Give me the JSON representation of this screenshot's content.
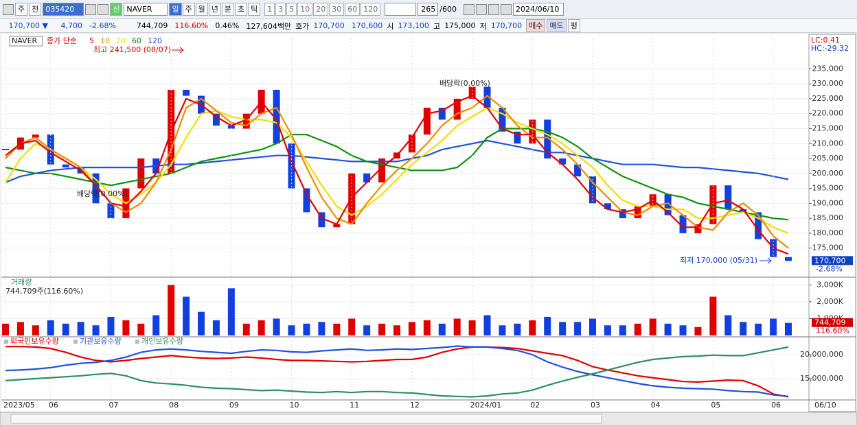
{
  "toolbar": {
    "market": "주",
    "mode": "전",
    "code": "035420",
    "name": "NAVER",
    "new": "신",
    "periods": [
      "일",
      "주",
      "월",
      "년",
      "분",
      "초",
      "틱"
    ],
    "intervals": [
      "1",
      "3",
      "5",
      "10",
      "20",
      "30",
      "60",
      "120"
    ],
    "count": "265",
    "max": "/600",
    "date": "2024/06/10"
  },
  "quote": {
    "price": "170,700 ▼",
    "change": "4,700",
    "change_pct": "-2.68%",
    "volume": "744,709",
    "volume_ratio": "116.60%",
    "turnover": "0.46%",
    "amount": "127,604백만",
    "ask_label": "호가",
    "ask": "170,700",
    "bid": "170,600",
    "open_label": "시",
    "open": "173,100",
    "high_label": "고",
    "high": "175,000",
    "low_label": "저",
    "low": "170,700",
    "buy": "매수",
    "sell": "매도",
    "avg": "평"
  },
  "chart_data": [
    {
      "type": "candlestick",
      "title": "NAVER",
      "legend_label": "종가 단순",
      "up_color": "#e00000",
      "down_color": "#1040e0",
      "categories": [
        "2023/05",
        null,
        null,
        "06",
        null,
        null,
        null,
        "07",
        null,
        null,
        null,
        "08",
        null,
        null,
        null,
        "09",
        null,
        null,
        null,
        "10",
        null,
        null,
        null,
        "11",
        null,
        null,
        null,
        "12",
        null,
        null,
        null,
        "2024/01",
        null,
        null,
        null,
        "02",
        null,
        null,
        null,
        "03",
        null,
        null,
        null,
        "04",
        null,
        null,
        null,
        "05",
        null,
        null,
        null,
        "06",
        null
      ],
      "x_end_label": "06/10",
      "close": [
        208000,
        212000,
        213000,
        203000,
        202000,
        200000,
        190000,
        185000,
        195000,
        205000,
        200000,
        228000,
        226000,
        220000,
        216000,
        215000,
        220000,
        228000,
        210000,
        195000,
        187000,
        182000,
        183000,
        200000,
        197000,
        205000,
        207000,
        213000,
        222000,
        218000,
        225000,
        229000,
        222000,
        214000,
        210000,
        218000,
        205000,
        203000,
        199000,
        190000,
        188000,
        185000,
        189000,
        193000,
        186000,
        180000,
        183000,
        196000,
        188000,
        187000,
        178000,
        172000,
        170700
      ],
      "series": [
        {
          "name": "5",
          "color": "#e00000",
          "values": [
            206000,
            210000,
            211000,
            207000,
            204000,
            201000,
            196000,
            190000,
            189000,
            194000,
            200000,
            214000,
            225000,
            223000,
            219000,
            216000,
            218000,
            224000,
            218000,
            204000,
            193000,
            185000,
            183000,
            192000,
            197000,
            202000,
            206000,
            212000,
            220000,
            221000,
            224000,
            226000,
            222000,
            215000,
            213000,
            213000,
            207000,
            203000,
            198000,
            192000,
            188000,
            187000,
            188000,
            191000,
            187000,
            182000,
            182000,
            190000,
            191000,
            188000,
            181000,
            175000,
            173000
          ]
        },
        {
          "name": "10",
          "color": "#f08a00",
          "values": [
            205000,
            210000,
            212000,
            208000,
            205000,
            202000,
            196000,
            190000,
            187000,
            190000,
            197000,
            208000,
            222000,
            225000,
            221000,
            217000,
            216000,
            220000,
            222000,
            213000,
            202000,
            192000,
            185000,
            183000,
            190000,
            196000,
            201000,
            205000,
            210000,
            216000,
            220000,
            222000,
            226000,
            222000,
            216000,
            212000,
            212000,
            208000,
            203000,
            197000,
            192000,
            187000,
            186000,
            189000,
            190000,
            186000,
            182000,
            181000,
            187000,
            190000,
            186000,
            179000,
            175000
          ]
        },
        {
          "name": "20",
          "color": "#f0e000",
          "values": [
            197000,
            205000,
            210000,
            208000,
            205000,
            202000,
            198000,
            193000,
            190000,
            193000,
            197000,
            203000,
            212000,
            220000,
            221000,
            219000,
            218000,
            218000,
            217000,
            212000,
            204000,
            196000,
            189000,
            186000,
            189000,
            193000,
            198000,
            203000,
            207000,
            211000,
            216000,
            219000,
            222000,
            220000,
            217000,
            215000,
            213000,
            210000,
            206000,
            202000,
            196000,
            191000,
            189000,
            189000,
            188000,
            188000,
            185000,
            185000,
            186000,
            187000,
            185000,
            182000,
            180000
          ]
        },
        {
          "name": "60",
          "color": "#109010",
          "values": [
            202000,
            201000,
            200000,
            200000,
            199000,
            198000,
            197000,
            196000,
            197000,
            198000,
            199000,
            200000,
            202000,
            204000,
            205000,
            206000,
            207000,
            208000,
            210000,
            213000,
            213000,
            211000,
            209000,
            206000,
            204000,
            203000,
            202000,
            201000,
            201000,
            201000,
            202000,
            206000,
            212000,
            215000,
            215000,
            215000,
            214000,
            212000,
            209000,
            205000,
            202000,
            199000,
            197000,
            195000,
            193000,
            192000,
            190000,
            189000,
            188000,
            187000,
            186000,
            185000,
            184500
          ]
        },
        {
          "name": "120",
          "color": "#2050e0",
          "values": [
            197000,
            199000,
            200000,
            201000,
            201500,
            202000,
            202000,
            202000,
            202000,
            202000,
            202500,
            203000,
            203000,
            203500,
            204000,
            204500,
            205000,
            205500,
            206000,
            206000,
            205500,
            205000,
            204500,
            204000,
            204000,
            204000,
            204000,
            205000,
            206000,
            208000,
            209000,
            210000,
            211000,
            210000,
            209000,
            208000,
            207000,
            207000,
            206000,
            205000,
            204000,
            203000,
            203000,
            203000,
            202500,
            202000,
            202000,
            201500,
            201000,
            200500,
            200000,
            199000,
            198000
          ]
        }
      ],
      "ylim": [
        165500,
        245200
      ],
      "yticks": [
        {
          "value": 175000,
          "label": "175,000"
        },
        {
          "value": 180000,
          "label": "180,000"
        },
        {
          "value": 185000,
          "label": "185,000"
        },
        {
          "value": 190000,
          "label": "190,000"
        },
        {
          "value": 195000,
          "label": "195,000"
        },
        {
          "value": 200000,
          "label": "200,000"
        },
        {
          "value": 205000,
          "label": "205,000"
        },
        {
          "value": 210000,
          "label": "210,000"
        },
        {
          "value": 215000,
          "label": "215,000"
        },
        {
          "value": 220000,
          "label": "220,000"
        },
        {
          "value": 225000,
          "label": "225,000"
        },
        {
          "value": 230000,
          "label": "230,000"
        },
        {
          "value": 235000,
          "label": "235,000"
        }
      ],
      "annotations": {
        "high": "최고 241,500 (08/07)",
        "dividend_1": "배당락(0.00%)",
        "dividend_2": "배당락(0.00%)",
        "low": "최저 170,000 (05/31)",
        "lc": "LC:0.41",
        "hc": "HC:-29.32",
        "last_price": "170,700",
        "last_change": "-2.68%"
      }
    },
    {
      "type": "bar",
      "title": "거래량",
      "subtitle": "744,709주(116.60%)",
      "values": [
        700,
        800,
        600,
        900,
        700,
        800,
        600,
        1100,
        900,
        700,
        1200,
        3000,
        2300,
        1400,
        900,
        2800,
        700,
        900,
        1000,
        600,
        700,
        800,
        700,
        1000,
        600,
        700,
        600,
        800,
        900,
        700,
        1000,
        900,
        1200,
        600,
        700,
        900,
        1100,
        800,
        800,
        1000,
        600,
        600,
        700,
        1000,
        700,
        600,
        500,
        2300,
        1200,
        800,
        700,
        1000,
        744.709
      ],
      "ylim": [
        0,
        3300
      ],
      "yticks": [
        {
          "value": 1000,
          "label": "1,000K"
        },
        {
          "value": 2000,
          "label": "2,000K"
        },
        {
          "value": 3000,
          "label": "3,000K"
        }
      ],
      "last_label": "744,709",
      "last_ratio": "116.60%"
    },
    {
      "type": "line",
      "series": [
        {
          "name": "외국인보유수량",
          "color": "#e00000",
          "values": [
            21700000,
            21700000,
            21600000,
            21300000,
            20500000,
            19500000,
            18800000,
            18500000,
            18800000,
            19200000,
            19500000,
            19800000,
            19500000,
            19300000,
            19200000,
            19300000,
            19500000,
            19300000,
            19000000,
            18800000,
            18800000,
            18700000,
            18600000,
            18500000,
            18600000,
            18800000,
            19000000,
            19000000,
            19500000,
            20500000,
            21200000,
            21600000,
            21600000,
            21500000,
            21300000,
            20800000,
            20300000,
            19800000,
            18800000,
            17500000,
            16800000,
            16200000,
            15600000,
            15200000,
            14800000,
            14400000,
            14300000,
            14500000,
            14700000,
            14600000,
            13500000,
            11800000,
            11200000
          ]
        },
        {
          "name": "기관보유수량",
          "color": "#2050e0",
          "values": [
            16700000,
            16800000,
            17000000,
            17300000,
            17800000,
            18200000,
            18400000,
            18800000,
            19500000,
            20500000,
            21000000,
            21200000,
            21000000,
            20700000,
            20500000,
            20300000,
            20700000,
            21000000,
            20900000,
            20600000,
            20500000,
            20800000,
            21000000,
            21200000,
            20900000,
            21000000,
            21200000,
            21100000,
            21300000,
            21500000,
            21800000,
            21600000,
            21600000,
            21300000,
            20900000,
            20000000,
            18500000,
            17400000,
            16500000,
            15800000,
            15200000,
            14600000,
            14000000,
            13500000,
            13200000,
            13000000,
            12900000,
            12800000,
            12500000,
            12300000,
            12200000,
            11600000,
            11300000
          ]
        },
        {
          "name": "개인보유수량",
          "color": "#2a9060",
          "values": [
            14600000,
            14800000,
            15000000,
            15200000,
            15400000,
            15600000,
            15900000,
            16100000,
            15600000,
            14600000,
            14100000,
            13900000,
            13600000,
            13200000,
            13000000,
            12900000,
            12700000,
            12500000,
            12600000,
            12400000,
            12200000,
            12100000,
            12300000,
            12100000,
            12300000,
            12300000,
            12100000,
            12000000,
            11700000,
            11400000,
            11300000,
            11200000,
            11400000,
            11800000,
            12000000,
            12600000,
            13600000,
            14500000,
            15300000,
            16000000,
            16800000,
            17600000,
            18400000,
            19000000,
            19300000,
            19600000,
            19700000,
            19900000,
            19800000,
            19800000,
            20400000,
            21000000,
            21600000
          ]
        }
      ],
      "ylim": [
        10700000,
        23300000
      ],
      "yticks": [
        {
          "value": 15000000,
          "label": "15,000,000"
        },
        {
          "value": 20000000,
          "label": "20,000,000"
        }
      ]
    }
  ]
}
